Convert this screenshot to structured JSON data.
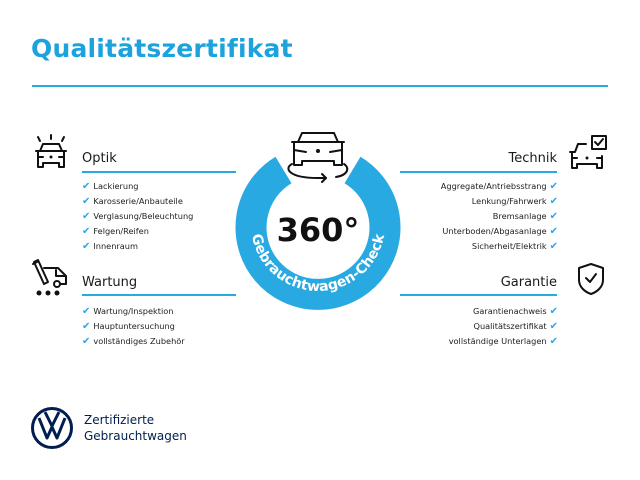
{
  "title": "Qualitätszertifikat",
  "accent_color": "#29a9e1",
  "brand_color": "#001e50",
  "center": {
    "number": "360°",
    "arc_text": "Gebrauchtwagen-Check",
    "icon": "car-rotate-icon"
  },
  "sections": {
    "optik": {
      "heading": "Optik",
      "icon": "car-lights-icon",
      "items": [
        "Lackierung",
        "Karosserie/Anbauteile",
        "Verglasung/Beleuchtung",
        "Felgen/Reifen",
        "Innenraum"
      ]
    },
    "wartung": {
      "heading": "Wartung",
      "icon": "service-van-icon",
      "items": [
        "Wartung/Inspektion",
        "Hauptuntersuchung",
        "vollständiges Zubehör"
      ]
    },
    "technik": {
      "heading": "Technik",
      "icon": "car-checkbox-icon",
      "items": [
        "Aggregate/Antriebsstrang",
        "Lenkung/Fahrwerk",
        "Bremsanlage",
        "Unterboden/Abgasanlage",
        "Sicherheit/Elektrik"
      ]
    },
    "garantie": {
      "heading": "Garantie",
      "icon": "shield-check-icon",
      "items": [
        "Garantienachweis",
        "Qualitätszertifikat",
        "vollständige Unterlagen"
      ]
    }
  },
  "check_mark": "✔",
  "footer": {
    "line1": "Zertifizierte",
    "line2": "Gebrauchtwagen",
    "logo": "vw-logo"
  }
}
